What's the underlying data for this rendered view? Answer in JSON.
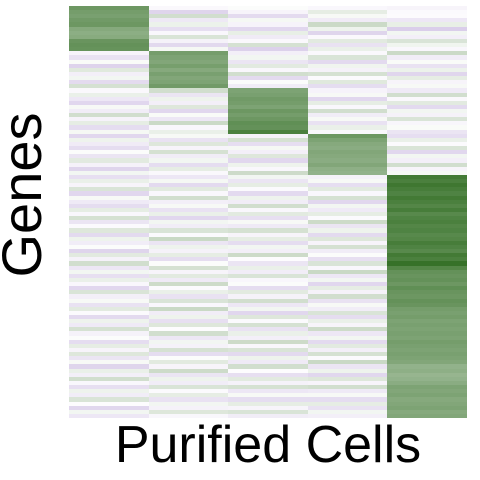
{
  "chart_data": {
    "type": "heatmap",
    "xlabel": "Purified Cells",
    "ylabel": "Genes",
    "columns": 5,
    "legend": "none",
    "grid": false,
    "colormap": {
      "negative": "#9a7bc5",
      "neutral": "#ffffff",
      "positive": "#2e6b1f",
      "range": [
        -1,
        1
      ]
    },
    "blocks": [
      {
        "column": 0,
        "rows": [
          0,
          11
        ]
      },
      {
        "column": 1,
        "rows": [
          11,
          20
        ]
      },
      {
        "column": 2,
        "rows": [
          20,
          31
        ]
      },
      {
        "column": 3,
        "rows": [
          31,
          41
        ]
      },
      {
        "column": 4,
        "rows": [
          41,
          100
        ]
      }
    ],
    "values": [
      [
        0.7,
        -0.05,
        0.02,
        -0.06,
        -0.08
      ],
      [
        0.66,
        -0.32,
        -0.08,
        0.12,
        -0.04
      ],
      [
        0.64,
        0.22,
        -0.27,
        0.04,
        -0.03
      ],
      [
        0.68,
        -0.17,
        0.05,
        -0.15,
        -0.18
      ],
      [
        0.7,
        0.09,
        -0.09,
        0.25,
        0.11
      ],
      [
        0.58,
        -0.25,
        -0.3,
        0.08,
        -0.37
      ],
      [
        0.55,
        -0.06,
        0.11,
        -0.32,
        0.06
      ],
      [
        0.57,
        0.18,
        -0.15,
        -0.05,
        -0.12
      ],
      [
        0.72,
        -0.1,
        -0.05,
        0.14,
        0.18
      ],
      [
        0.74,
        -0.29,
        0.2,
        -0.22,
        0.07
      ],
      [
        0.73,
        0.05,
        -0.35,
        0.1,
        -0.06
      ],
      [
        -0.08,
        0.66,
        -0.12,
        -0.05,
        0.25
      ],
      [
        -0.22,
        0.62,
        0.06,
        0.18,
        -0.14
      ],
      [
        0.03,
        0.6,
        -0.2,
        -0.28,
        0.03
      ],
      [
        -0.33,
        0.65,
        0.14,
        0.07,
        -0.22
      ],
      [
        0.15,
        0.58,
        -0.06,
        -0.1,
        0.09
      ],
      [
        -0.12,
        0.64,
        0.22,
        0.2,
        -0.31
      ],
      [
        0.06,
        0.6,
        -0.28,
        -0.04,
        0.12
      ],
      [
        -0.27,
        0.62,
        0.02,
        0.15,
        -0.08
      ],
      [
        0.2,
        0.68,
        -0.14,
        -0.26,
        0.04
      ],
      [
        -0.05,
        0.22,
        0.62,
        -0.09,
        -0.16
      ],
      [
        0.1,
        -0.2,
        0.64,
        0.04,
        0.22
      ],
      [
        -0.18,
        0.08,
        0.68,
        -0.3,
        -0.05
      ],
      [
        -0.3,
        -0.12,
        0.66,
        0.12,
        0.14
      ],
      [
        0.04,
        0.16,
        0.62,
        -0.06,
        -0.28
      ],
      [
        -0.14,
        -0.3,
        0.7,
        0.22,
        0.06
      ],
      [
        0.22,
        0.03,
        0.66,
        -0.14,
        -0.1
      ],
      [
        -0.09,
        -0.18,
        0.7,
        0.04,
        0.18
      ],
      [
        0.12,
        0.25,
        0.76,
        -0.22,
        -0.07
      ],
      [
        -0.26,
        -0.06,
        0.74,
        0.1,
        0.03
      ],
      [
        0.05,
        0.1,
        0.86,
        -0.05,
        -0.2
      ],
      [
        -0.3,
        0.04,
        -0.1,
        0.7,
        -0.25
      ],
      [
        0.08,
        -0.22,
        0.2,
        0.62,
        0.1
      ],
      [
        -0.15,
        0.16,
        -0.25,
        0.58,
        -0.04
      ],
      [
        -0.26,
        -0.08,
        0.05,
        0.56,
        0.18
      ],
      [
        0.02,
        0.2,
        -0.12,
        0.6,
        -0.3
      ],
      [
        -0.2,
        -0.14,
        0.16,
        0.58,
        0.06
      ],
      [
        0.14,
        0.06,
        -0.3,
        0.56,
        -0.12
      ],
      [
        -0.1,
        -0.26,
        0.08,
        0.6,
        0.22
      ],
      [
        -0.32,
        0.12,
        -0.06,
        0.54,
        -0.08
      ],
      [
        0.06,
        -0.05,
        0.24,
        0.52,
        0.04
      ],
      [
        -0.24,
        -0.18,
        0.06,
        -0.1,
        0.9
      ],
      [
        0.1,
        0.05,
        -0.2,
        0.04,
        0.86
      ],
      [
        -0.08,
        -0.28,
        0.12,
        -0.25,
        0.92
      ],
      [
        0.18,
        0.14,
        -0.04,
        0.14,
        0.88
      ],
      [
        -0.3,
        -0.06,
        -0.28,
        -0.06,
        0.84
      ],
      [
        0.04,
        0.22,
        0.08,
        0.2,
        0.9
      ],
      [
        -0.16,
        -0.12,
        -0.14,
        -0.3,
        0.86
      ],
      [
        -0.26,
        0.04,
        0.22,
        0.06,
        0.82
      ],
      [
        0.12,
        -0.22,
        -0.06,
        -0.16,
        0.88
      ],
      [
        -0.06,
        0.1,
        0.14,
        0.12,
        0.8
      ],
      [
        0.2,
        -0.3,
        -0.24,
        -0.04,
        0.84
      ],
      [
        -0.2,
        0.06,
        0.04,
        0.24,
        0.86
      ],
      [
        -0.04,
        -0.14,
        -0.16,
        -0.2,
        0.82
      ],
      [
        0.16,
        0.18,
        0.2,
        0.08,
        0.84
      ],
      [
        -0.28,
        -0.04,
        -0.08,
        -0.28,
        0.8
      ],
      [
        0.08,
        0.26,
        0.12,
        0.16,
        0.82
      ],
      [
        -0.14,
        -0.2,
        -0.26,
        -0.08,
        0.88
      ],
      [
        0.02,
        0.08,
        0.06,
        0.2,
        0.84
      ],
      [
        -0.32,
        -0.1,
        -0.12,
        -0.14,
        0.8
      ],
      [
        0.14,
        0.12,
        0.24,
        0.02,
        0.9
      ],
      [
        -0.1,
        -0.26,
        -0.02,
        -0.24,
        0.86
      ],
      [
        0.22,
        0.02,
        -0.2,
        0.18,
        0.96
      ],
      [
        -0.18,
        0.2,
        0.1,
        -0.06,
        0.82
      ],
      [
        0.06,
        -0.08,
        -0.14,
        0.26,
        0.74
      ],
      [
        -0.24,
        0.14,
        0.18,
        -0.18,
        0.72
      ],
      [
        0.1,
        -0.16,
        -0.06,
        0.06,
        0.74
      ],
      [
        -0.06,
        0.24,
        0.02,
        -0.3,
        0.7
      ],
      [
        -0.3,
        -0.04,
        -0.26,
        0.12,
        0.76
      ],
      [
        0.18,
        0.1,
        0.14,
        -0.1,
        0.72
      ],
      [
        -0.12,
        -0.22,
        -0.1,
        0.22,
        0.7
      ],
      [
        0.04,
        0.18,
        0.22,
        -0.22,
        0.74
      ],
      [
        -0.22,
        -0.06,
        -0.18,
        0.04,
        0.72
      ],
      [
        0.14,
        0.26,
        0.06,
        -0.14,
        0.66
      ],
      [
        -0.04,
        -0.14,
        -0.3,
        0.18,
        0.64
      ],
      [
        -0.28,
        0.08,
        0.16,
        -0.26,
        0.66
      ],
      [
        0.08,
        -0.24,
        -0.04,
        0.1,
        0.62
      ],
      [
        -0.16,
        0.16,
        0.2,
        -0.08,
        0.64
      ],
      [
        0.2,
        -0.02,
        -0.22,
        0.24,
        0.62
      ],
      [
        -0.1,
        0.22,
        0.1,
        -0.18,
        0.64
      ],
      [
        0.02,
        -0.18,
        -0.12,
        0.06,
        0.62
      ],
      [
        -0.26,
        0.06,
        0.24,
        -0.28,
        0.66
      ],
      [
        0.12,
        -0.1,
        -0.06,
        0.14,
        0.64
      ],
      [
        -0.08,
        0.2,
        0.18,
        -0.12,
        0.62
      ],
      [
        0.16,
        -0.26,
        -0.28,
        0.2,
        0.64
      ],
      [
        -0.2,
        0.02,
        0.08,
        -0.04,
        0.62
      ],
      [
        0.04,
        0.14,
        -0.16,
        0.26,
        0.6
      ],
      [
        -0.32,
        -0.08,
        0.22,
        -0.2,
        0.52
      ],
      [
        0.1,
        0.24,
        -0.02,
        0.08,
        0.54
      ],
      [
        -0.12,
        -0.2,
        -0.24,
        -0.3,
        0.5
      ],
      [
        0.22,
        0.08,
        0.14,
        0.16,
        0.52
      ],
      [
        -0.06,
        -0.14,
        -0.1,
        -0.08,
        0.56
      ],
      [
        -0.24,
        0.18,
        0.2,
        0.22,
        0.62
      ],
      [
        0.08,
        -0.04,
        -0.18,
        -0.16,
        0.6
      ],
      [
        -0.14,
        0.12,
        0.04,
        0.04,
        0.62
      ],
      [
        0.18,
        -0.22,
        -0.26,
        -0.26,
        0.58
      ],
      [
        -0.02,
        0.06,
        0.12,
        0.12,
        0.6
      ],
      [
        -0.3,
        -0.1,
        -0.08,
        -0.22,
        0.62
      ],
      [
        0.06,
        0.16,
        0.18,
        0.06,
        0.58
      ],
      [
        -0.18,
        -0.06,
        -0.14,
        -0.12,
        0.6
      ]
    ]
  }
}
